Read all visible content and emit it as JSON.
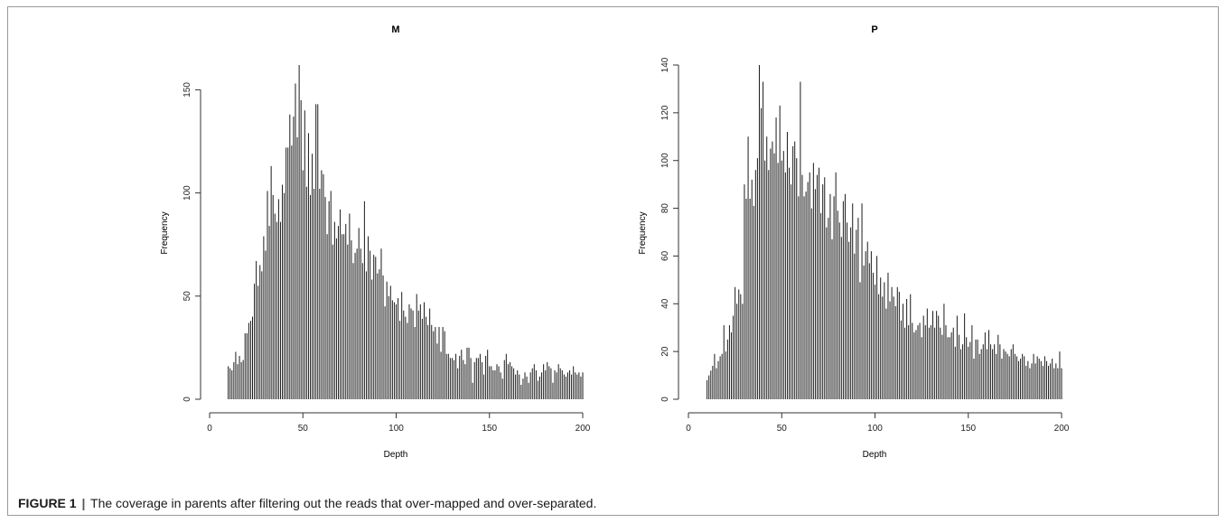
{
  "figure": {
    "label": "FIGURE 1",
    "separator": "|",
    "caption": "The coverage in parents after filtering out the reads that over-mapped and over-separated."
  },
  "colors": {
    "bar": "#1a1a1a",
    "axis": "#333333",
    "frame": "#9a9a9a"
  },
  "chart_data": [
    {
      "type": "bar",
      "title": "M",
      "xlabel": "Depth",
      "ylabel": "Frequency",
      "xlim": [
        0,
        200
      ],
      "ylim": [
        0,
        162
      ],
      "xticks": [
        0,
        50,
        100,
        150,
        200
      ],
      "yticks": [
        0,
        50,
        100,
        150
      ],
      "x": [
        10,
        11,
        12,
        13,
        14,
        15,
        16,
        17,
        18,
        19,
        20,
        21,
        22,
        23,
        24,
        25,
        26,
        27,
        28,
        29,
        30,
        31,
        32,
        33,
        34,
        35,
        36,
        37,
        38,
        39,
        40,
        41,
        42,
        43,
        44,
        45,
        46,
        47,
        48,
        49,
        50,
        51,
        52,
        53,
        54,
        55,
        56,
        57,
        58,
        59,
        60,
        61,
        62,
        63,
        64,
        65,
        66,
        67,
        68,
        69,
        70,
        71,
        72,
        73,
        74,
        75,
        76,
        77,
        78,
        79,
        80,
        81,
        82,
        83,
        84,
        85,
        86,
        87,
        88,
        89,
        90,
        91,
        92,
        93,
        94,
        95,
        96,
        97,
        98,
        99,
        100,
        101,
        102,
        103,
        104,
        105,
        106,
        107,
        108,
        109,
        110,
        111,
        112,
        113,
        114,
        115,
        116,
        117,
        118,
        119,
        120,
        121,
        122,
        123,
        124,
        125,
        126,
        127,
        128,
        129,
        130,
        131,
        132,
        133,
        134,
        135,
        136,
        137,
        138,
        139,
        140,
        141,
        142,
        143,
        144,
        145,
        146,
        147,
        148,
        149,
        150,
        151,
        152,
        153,
        154,
        155,
        156,
        157,
        158,
        159,
        160,
        161,
        162,
        163,
        164,
        165,
        166,
        167,
        168,
        169,
        170,
        171,
        172,
        173,
        174,
        175,
        176,
        177,
        178,
        179,
        180,
        181,
        182,
        183,
        184,
        185,
        186,
        187,
        188,
        189,
        190,
        191,
        192,
        193,
        194,
        195,
        196,
        197,
        198,
        199,
        200
      ],
      "values": [
        16,
        15,
        14,
        18,
        23,
        17,
        21,
        18,
        19,
        32,
        32,
        37,
        38,
        40,
        56,
        67,
        55,
        65,
        62,
        79,
        72,
        101,
        84,
        113,
        99,
        90,
        86,
        97,
        86,
        104,
        100,
        122,
        122,
        138,
        123,
        137,
        153,
        127,
        162,
        145,
        111,
        140,
        103,
        129,
        99,
        119,
        102,
        143,
        143,
        102,
        111,
        109,
        98,
        80,
        96,
        101,
        75,
        86,
        78,
        84,
        92,
        80,
        80,
        85,
        75,
        90,
        77,
        66,
        71,
        73,
        83,
        73,
        66,
        96,
        62,
        79,
        72,
        58,
        70,
        69,
        61,
        63,
        73,
        60,
        45,
        57,
        50,
        55,
        48,
        47,
        46,
        49,
        38,
        52,
        43,
        40,
        37,
        46,
        44,
        43,
        35,
        51,
        43,
        46,
        39,
        47,
        40,
        36,
        44,
        36,
        33,
        35,
        27,
        35,
        23,
        35,
        33,
        22,
        22,
        20,
        20,
        19,
        22,
        15,
        21,
        24,
        19,
        17,
        25,
        25,
        20,
        8,
        18,
        20,
        20,
        22,
        18,
        12,
        21,
        24,
        16,
        16,
        14,
        14,
        17,
        16,
        13,
        10,
        19,
        22,
        17,
        18,
        16,
        15,
        12,
        14,
        12,
        7,
        10,
        13,
        11,
        8,
        13,
        15,
        17,
        14,
        9,
        11,
        13,
        17,
        14,
        18,
        16,
        15,
        8,
        14,
        13,
        17,
        15,
        14,
        12,
        11,
        13,
        14,
        12,
        16,
        13,
        12,
        13,
        11,
        13
      ],
      "bar_color": "#1a1a1a"
    },
    {
      "type": "bar",
      "title": "P",
      "xlabel": "Depth",
      "ylabel": "Frequency",
      "xlim": [
        0,
        200
      ],
      "ylim": [
        0,
        140
      ],
      "xticks": [
        0,
        50,
        100,
        150,
        200
      ],
      "yticks": [
        0,
        20,
        40,
        60,
        80,
        100,
        120,
        140
      ],
      "x": [
        10,
        11,
        12,
        13,
        14,
        15,
        16,
        17,
        18,
        19,
        20,
        21,
        22,
        23,
        24,
        25,
        26,
        27,
        28,
        29,
        30,
        31,
        32,
        33,
        34,
        35,
        36,
        37,
        38,
        39,
        40,
        41,
        42,
        43,
        44,
        45,
        46,
        47,
        48,
        49,
        50,
        51,
        52,
        53,
        54,
        55,
        56,
        57,
        58,
        59,
        60,
        61,
        62,
        63,
        64,
        65,
        66,
        67,
        68,
        69,
        70,
        71,
        72,
        73,
        74,
        75,
        76,
        77,
        78,
        79,
        80,
        81,
        82,
        83,
        84,
        85,
        86,
        87,
        88,
        89,
        90,
        91,
        92,
        93,
        94,
        95,
        96,
        97,
        98,
        99,
        100,
        101,
        102,
        103,
        104,
        105,
        106,
        107,
        108,
        109,
        110,
        111,
        112,
        113,
        114,
        115,
        116,
        117,
        118,
        119,
        120,
        121,
        122,
        123,
        124,
        125,
        126,
        127,
        128,
        129,
        130,
        131,
        132,
        133,
        134,
        135,
        136,
        137,
        138,
        139,
        140,
        141,
        142,
        143,
        144,
        145,
        146,
        147,
        148,
        149,
        150,
        151,
        152,
        153,
        154,
        155,
        156,
        157,
        158,
        159,
        160,
        161,
        162,
        163,
        164,
        165,
        166,
        167,
        168,
        169,
        170,
        171,
        172,
        173,
        174,
        175,
        176,
        177,
        178,
        179,
        180,
        181,
        182,
        183,
        184,
        185,
        186,
        187,
        188,
        189,
        190,
        191,
        192,
        193,
        194,
        195,
        196,
        197,
        198,
        199,
        200
      ],
      "values": [
        8,
        10,
        12,
        14,
        19,
        13,
        16,
        18,
        19,
        31,
        20,
        25,
        31,
        28,
        35,
        47,
        40,
        46,
        44,
        40,
        90,
        84,
        110,
        84,
        92,
        81,
        96,
        101,
        140,
        122,
        133,
        100,
        110,
        96,
        105,
        108,
        103,
        118,
        99,
        123,
        100,
        104,
        95,
        112,
        97,
        90,
        106,
        108,
        101,
        85,
        133,
        94,
        85,
        87,
        91,
        95,
        80,
        99,
        88,
        94,
        97,
        78,
        90,
        93,
        72,
        76,
        86,
        67,
        85,
        95,
        79,
        74,
        68,
        83,
        86,
        74,
        66,
        72,
        82,
        61,
        71,
        76,
        49,
        82,
        56,
        62,
        66,
        57,
        62,
        53,
        48,
        60,
        44,
        51,
        43,
        49,
        38,
        53,
        41,
        47,
        43,
        39,
        47,
        45,
        33,
        40,
        30,
        42,
        31,
        44,
        32,
        28,
        29,
        31,
        32,
        26,
        35,
        31,
        38,
        30,
        31,
        37,
        30,
        37,
        35,
        30,
        27,
        40,
        31,
        26,
        26,
        28,
        30,
        22,
        35,
        27,
        21,
        23,
        36,
        26,
        22,
        24,
        31,
        17,
        25,
        25,
        19,
        21,
        23,
        28,
        21,
        29,
        23,
        21,
        23,
        19,
        27,
        23,
        17,
        21,
        20,
        19,
        18,
        21,
        23,
        19,
        18,
        16,
        17,
        19,
        18,
        14,
        16,
        13,
        15,
        19,
        15,
        18,
        17,
        16,
        14,
        18,
        16,
        14,
        15,
        17,
        13,
        15,
        13,
        20,
        13
      ],
      "bar_color": "#1a1a1a"
    }
  ]
}
